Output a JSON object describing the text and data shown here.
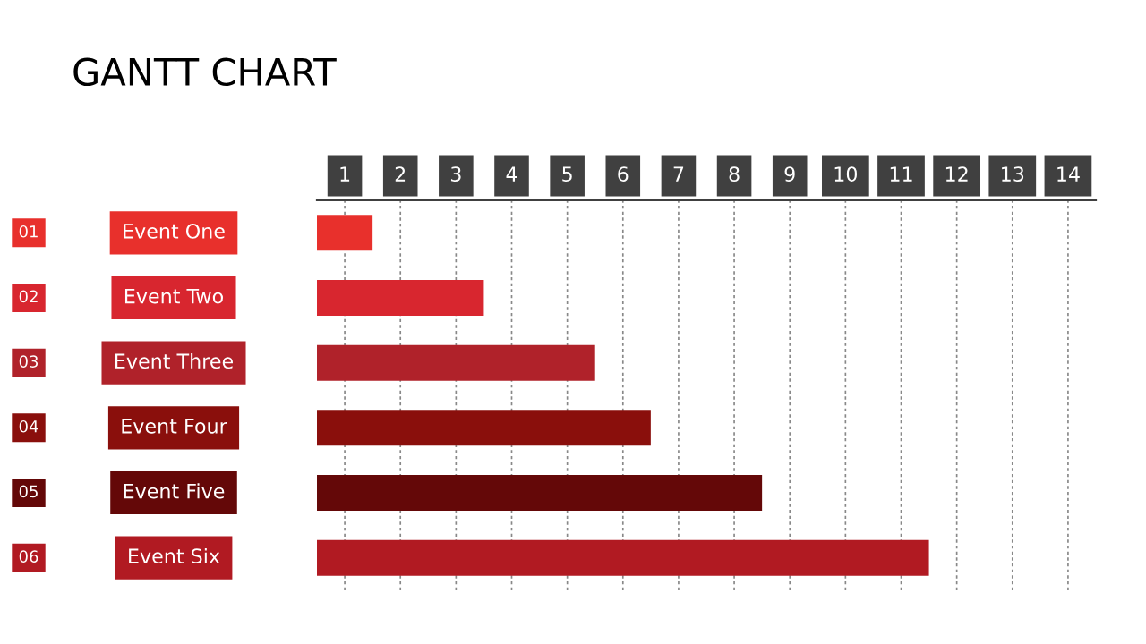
{
  "chart_data": {
    "type": "bar",
    "orientation": "horizontal",
    "title": "GANTT CHART",
    "categories": [
      "Event One",
      "Event Two",
      "Event Three",
      "Event Four",
      "Event Five",
      "Event Six"
    ],
    "values": [
      1,
      3,
      5,
      6,
      8,
      11
    ],
    "base": [
      0.5,
      0.5,
      0.5,
      0.5,
      0.5,
      0.5
    ],
    "colors": [
      "#e8302c",
      "#d8262f",
      "#b0222a",
      "#8a0f0c",
      "#640808",
      "#b11a22"
    ],
    "xlim": [
      0.5,
      14.5
    ],
    "xticks": [
      1,
      2,
      3,
      4,
      5,
      6,
      7,
      8,
      9,
      10,
      11,
      12,
      13,
      14
    ],
    "grid": "x",
    "legend": false,
    "annotations": [
      "01",
      "02",
      "03",
      "04",
      "05",
      "06"
    ]
  }
}
